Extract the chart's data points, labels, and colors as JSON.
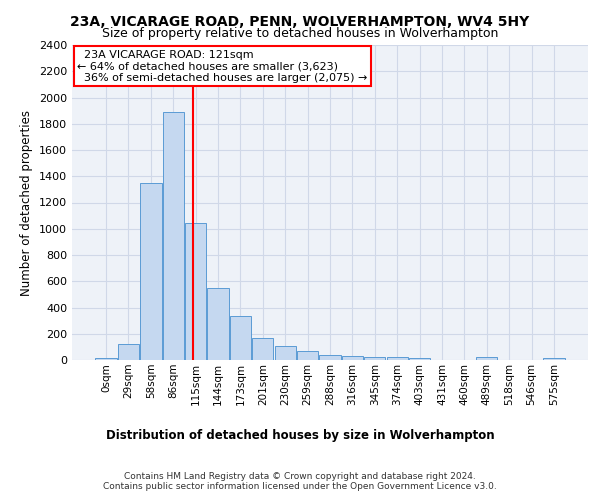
{
  "title": "23A, VICARAGE ROAD, PENN, WOLVERHAMPTON, WV4 5HY",
  "subtitle": "Size of property relative to detached houses in Wolverhampton",
  "xlabel": "Distribution of detached houses by size in Wolverhampton",
  "ylabel": "Number of detached properties",
  "footer1": "Contains HM Land Registry data © Crown copyright and database right 2024.",
  "footer2": "Contains public sector information licensed under the Open Government Licence v3.0.",
  "bar_values": [
    15,
    125,
    1345,
    1890,
    1045,
    545,
    335,
    170,
    110,
    65,
    40,
    30,
    25,
    20,
    15,
    0,
    0,
    20,
    0,
    0,
    15
  ],
  "bar_color": "#c5d8f0",
  "bar_edge_color": "#5b9bd5",
  "x_labels": [
    "0sqm",
    "29sqm",
    "58sqm",
    "86sqm",
    "115sqm",
    "144sqm",
    "173sqm",
    "201sqm",
    "230sqm",
    "259sqm",
    "288sqm",
    "316sqm",
    "345sqm",
    "374sqm",
    "403sqm",
    "431sqm",
    "460sqm",
    "489sqm",
    "518sqm",
    "546sqm",
    "575sqm"
  ],
  "red_line_x": 3.86,
  "annotation_text": "  23A VICARAGE ROAD: 121sqm\n← 64% of detached houses are smaller (3,623)\n  36% of semi-detached houses are larger (2,075) →",
  "annotation_box_color": "#ff0000",
  "ylim": [
    0,
    2400
  ],
  "yticks": [
    0,
    200,
    400,
    600,
    800,
    1000,
    1200,
    1400,
    1600,
    1800,
    2000,
    2200,
    2400
  ],
  "grid_color": "#d0d8e8",
  "bg_color": "#eef2f8",
  "title_fontsize": 10,
  "subtitle_fontsize": 9
}
